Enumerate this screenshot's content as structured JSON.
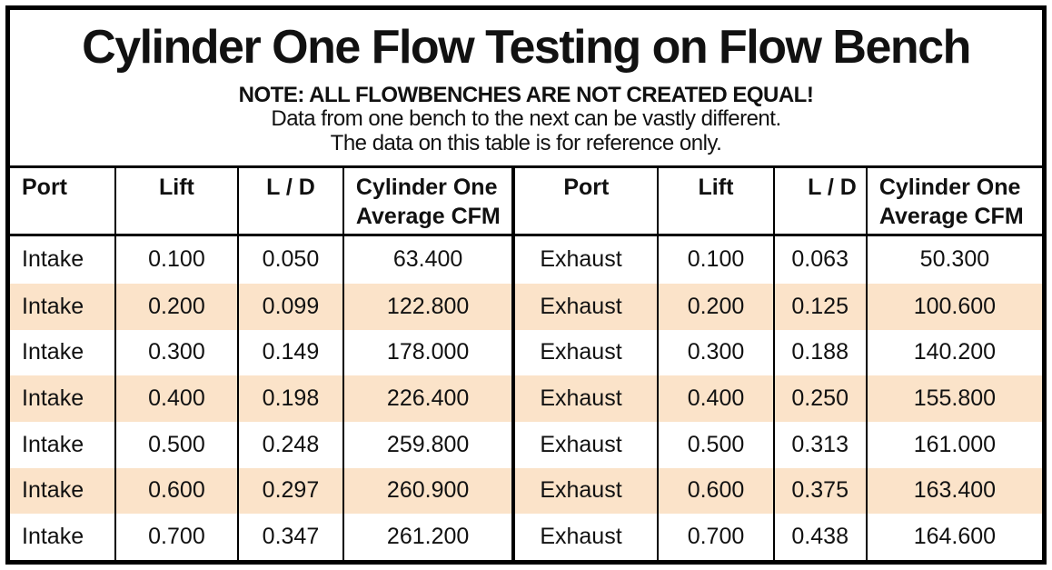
{
  "title": "Cylinder One Flow Testing on Flow Bench",
  "note": {
    "line1": "NOTE: ALL FLOWBENCHES ARE NOT CREATED EQUAL!",
    "line2": "Data from one bench to the next can be vastly different.",
    "line3": "The data on this table is for reference only."
  },
  "table": {
    "header": [
      [
        "Port"
      ],
      [
        "Lift"
      ],
      [
        "L / D"
      ],
      [
        "Cylinder One",
        "Average CFM"
      ],
      [
        "Port"
      ],
      [
        "Lift"
      ],
      [
        "L / D"
      ],
      [
        "Cylinder One",
        "Average CFM"
      ]
    ]
  },
  "colors": {
    "row_shade": "#FBE3C9",
    "border": "#000000",
    "text": "#111111"
  },
  "chart_data": {
    "type": "table",
    "title": "Cylinder One Flow Testing on Flow Bench",
    "columns": [
      "Port",
      "Lift",
      "L / D",
      "Cylinder One Average CFM",
      "Port",
      "Lift",
      "L / D",
      "Cylinder One Average CFM"
    ],
    "rows": [
      [
        "Intake",
        "0.100",
        "0.050",
        "63.400",
        "Exhaust",
        "0.100",
        "0.063",
        "50.300"
      ],
      [
        "Intake",
        "0.200",
        "0.099",
        "122.800",
        "Exhaust",
        "0.200",
        "0.125",
        "100.600"
      ],
      [
        "Intake",
        "0.300",
        "0.149",
        "178.000",
        "Exhaust",
        "0.300",
        "0.188",
        "140.200"
      ],
      [
        "Intake",
        "0.400",
        "0.198",
        "226.400",
        "Exhaust",
        "0.400",
        "0.250",
        "155.800"
      ],
      [
        "Intake",
        "0.500",
        "0.248",
        "259.800",
        "Exhaust",
        "0.500",
        "0.313",
        "161.000"
      ],
      [
        "Intake",
        "0.600",
        "0.297",
        "260.900",
        "Exhaust",
        "0.600",
        "0.375",
        "163.400"
      ],
      [
        "Intake",
        "0.700",
        "0.347",
        "261.200",
        "Exhaust",
        "0.700",
        "0.438",
        "164.600"
      ]
    ]
  }
}
